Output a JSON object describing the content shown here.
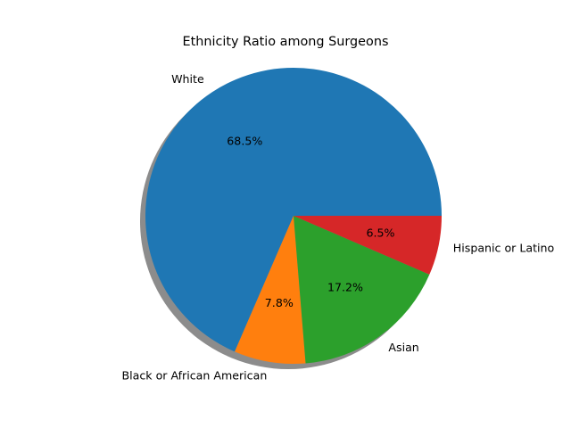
{
  "chart_data": {
    "type": "pie",
    "title": "Ethnicity Ratio among Surgeons",
    "labels": [
      "White",
      "Black or African American",
      "Asian",
      "Hispanic or Latino"
    ],
    "values": [
      68.5,
      7.8,
      17.2,
      6.5
    ],
    "percent_labels": [
      "68.5%",
      "7.8%",
      "17.2%",
      "6.5%"
    ],
    "colors": [
      "#1f77b4",
      "#ff7f0e",
      "#2ca02c",
      "#d62728"
    ],
    "start_angle_deg": 0,
    "direction": "counterclockwise",
    "shadow": true
  }
}
